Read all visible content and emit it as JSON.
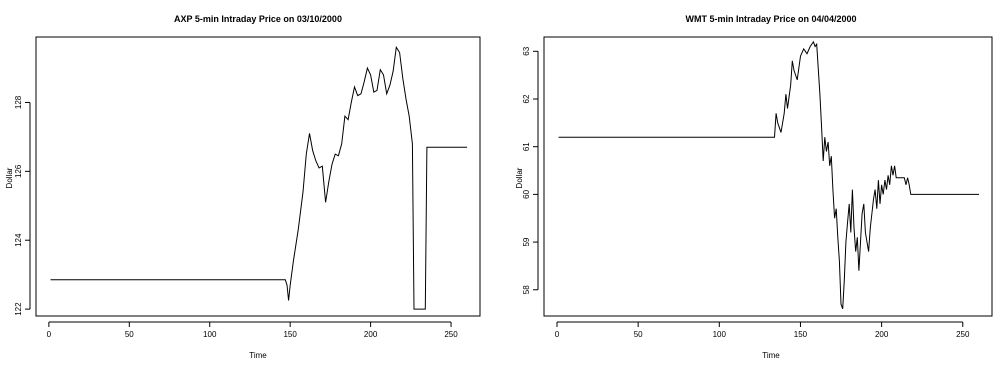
{
  "chart_data": [
    {
      "type": "line",
      "title": "AXP 5-min Intraday Price on 03/10/2000",
      "xlabel": "Time",
      "ylabel": "Dollar",
      "xlim": [
        -8,
        268
      ],
      "ylim": [
        121.8,
        129.9
      ],
      "xticks": [
        0,
        50,
        100,
        150,
        200,
        250
      ],
      "yticks": [
        122,
        124,
        126,
        128
      ],
      "grid": false,
      "series": [
        {
          "x": [
            1,
            147,
            148,
            149,
            150,
            152,
            155,
            158,
            160,
            162,
            164,
            166,
            168,
            170,
            172,
            174,
            176,
            178,
            180,
            182,
            184,
            186,
            188,
            190,
            192,
            194,
            196,
            198,
            200,
            202,
            204,
            206,
            208,
            210,
            212,
            214,
            216,
            218,
            220,
            222,
            224,
            226,
            227,
            234,
            235,
            260
          ],
          "y": [
            122.85,
            122.85,
            122.7,
            122.25,
            122.7,
            123.4,
            124.3,
            125.4,
            126.5,
            127.1,
            126.6,
            126.3,
            126.1,
            126.15,
            125.1,
            125.7,
            126.2,
            126.5,
            126.45,
            126.8,
            127.6,
            127.5,
            128.0,
            128.45,
            128.2,
            128.25,
            128.6,
            129.0,
            128.8,
            128.3,
            128.35,
            128.95,
            128.8,
            128.25,
            128.5,
            128.9,
            129.6,
            129.45,
            128.7,
            128.1,
            127.6,
            126.8,
            122.0,
            122.0,
            126.7,
            126.7
          ]
        }
      ]
    },
    {
      "type": "line",
      "title": "WMT 5-min Intraday Price on 04/04/2000",
      "xlabel": "Time",
      "ylabel": "Dollar",
      "xlim": [
        -8,
        268
      ],
      "ylim": [
        57.45,
        63.3
      ],
      "xticks": [
        0,
        50,
        100,
        150,
        200,
        250
      ],
      "yticks": [
        58,
        59,
        60,
        61,
        62,
        63
      ],
      "grid": false,
      "series": [
        {
          "x": [
            1,
            134,
            135,
            136,
            138,
            140,
            141,
            142,
            144,
            145,
            146,
            148,
            150,
            152,
            154,
            156,
            158,
            159,
            160,
            162,
            163,
            164,
            165,
            166,
            167,
            168,
            169,
            170,
            171,
            172,
            173,
            174,
            175,
            176,
            177,
            178,
            179,
            180,
            181,
            182,
            183,
            184,
            185,
            186,
            187,
            188,
            189,
            190,
            191,
            192,
            193,
            194,
            195,
            196,
            197,
            198,
            199,
            200,
            201,
            202,
            203,
            204,
            205,
            206,
            207,
            208,
            209,
            210,
            211,
            212,
            213,
            214,
            215,
            216,
            217,
            218,
            219,
            220,
            221,
            222,
            223,
            224,
            225,
            226,
            227,
            230,
            260
          ],
          "y": [
            61.2,
            61.2,
            61.7,
            61.5,
            61.3,
            61.7,
            62.1,
            61.8,
            62.3,
            62.8,
            62.6,
            62.4,
            62.9,
            63.05,
            62.95,
            63.1,
            63.2,
            63.1,
            63.15,
            62.1,
            61.4,
            60.7,
            61.2,
            60.9,
            61.1,
            60.6,
            60.8,
            60.1,
            59.5,
            59.7,
            59.1,
            58.6,
            57.7,
            57.6,
            58.2,
            59.0,
            59.4,
            59.8,
            59.2,
            60.1,
            59.3,
            58.8,
            59.1,
            58.4,
            59.0,
            59.6,
            59.8,
            59.2,
            59.0,
            58.8,
            59.3,
            59.6,
            59.9,
            60.1,
            59.7,
            60.3,
            59.8,
            60.2,
            60.0,
            60.3,
            60.1,
            60.4,
            60.2,
            60.6,
            60.4,
            60.6,
            60.35,
            60.35,
            60.35,
            60.35,
            60.35,
            60.35,
            60.2,
            60.35,
            60.2,
            60.0,
            60.0,
            60.0,
            60.0,
            60.0,
            60.0,
            60.0,
            60.0,
            60.0,
            60.0,
            60.0,
            60.0
          ]
        }
      ]
    }
  ]
}
